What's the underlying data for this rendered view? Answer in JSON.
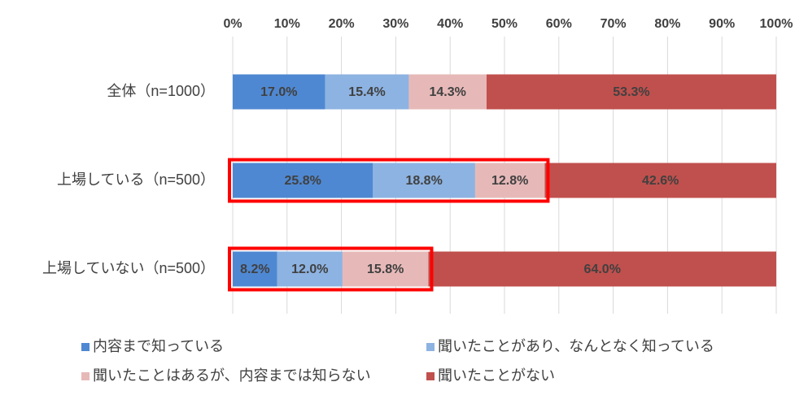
{
  "chart_data": {
    "type": "stacked-bar-horizontal",
    "categories": [
      "全体（n=1000）",
      "上場している（n=500）",
      "上場していない（n=500）"
    ],
    "series": [
      {
        "name": "内容まで知っている",
        "color": "#4f88d2",
        "values": [
          17.0,
          25.8,
          8.2
        ],
        "value_labels": [
          "17.0%",
          "25.8%",
          "8.2%"
        ]
      },
      {
        "name": "聞いたことがあり、なんとなく知っている",
        "color": "#8db3e2",
        "values": [
          15.4,
          18.8,
          12.0
        ],
        "value_labels": [
          "15.4%",
          "18.8%",
          "12.0%"
        ]
      },
      {
        "name": "聞いたことはあるが、内容までは知らない",
        "color": "#e6b9b8",
        "values": [
          14.3,
          12.8,
          15.8
        ],
        "value_labels": [
          "14.3%",
          "12.8%",
          "15.8%"
        ]
      },
      {
        "name": "聞いたことがない",
        "color": "#c0504d",
        "values": [
          53.3,
          42.6,
          64.0
        ],
        "value_labels": [
          "53.3%",
          "42.6%",
          "64.0%"
        ]
      }
    ],
    "xlim": [
      0,
      100
    ],
    "xticks": [
      {
        "value": 0,
        "label": "0%"
      },
      {
        "value": 10,
        "label": "10%"
      },
      {
        "value": 20,
        "label": "20%"
      },
      {
        "value": 30,
        "label": "30%"
      },
      {
        "value": 40,
        "label": "40%"
      },
      {
        "value": 50,
        "label": "50%"
      },
      {
        "value": 60,
        "label": "60%"
      },
      {
        "value": 70,
        "label": "70%"
      },
      {
        "value": 80,
        "label": "80%"
      },
      {
        "value": 90,
        "label": "90%"
      },
      {
        "value": 100,
        "label": "100%"
      }
    ],
    "grid": true,
    "legend": "bottom"
  }
}
